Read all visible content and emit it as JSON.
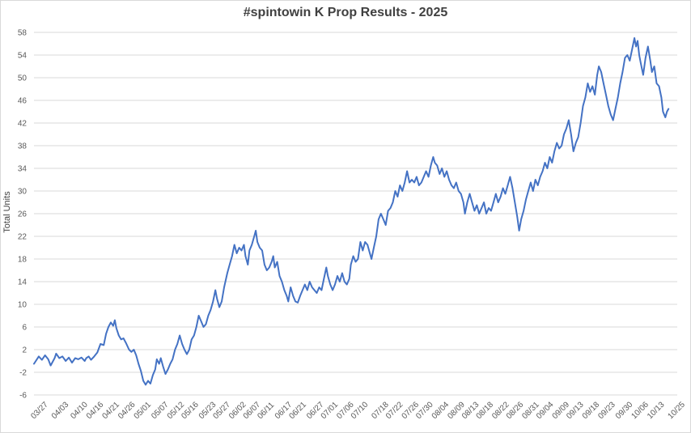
{
  "chart_data": {
    "type": "line",
    "title": "#spintowin K Prop Results - 2025",
    "xlabel": "",
    "ylabel": "Total Units",
    "ylim": [
      -6,
      58
    ],
    "yticks": [
      -6,
      -2,
      2,
      6,
      10,
      14,
      18,
      22,
      26,
      30,
      34,
      38,
      42,
      46,
      50,
      54,
      58
    ],
    "grid": true,
    "line_color": "#4472C4",
    "x_categories": [
      "03/27",
      "04/03",
      "04/10",
      "04/16",
      "04/21",
      "04/26",
      "05/01",
      "05/07",
      "05/12",
      "05/16",
      "05/23",
      "05/27",
      "06/02",
      "06/07",
      "06/11",
      "06/17",
      "06/21",
      "06/27",
      "07/01",
      "07/06",
      "07/10",
      "07/18",
      "07/22",
      "07/26",
      "07/30",
      "08/04",
      "08/09",
      "08/13",
      "08/18",
      "08/22",
      "08/26",
      "08/31",
      "09/04",
      "09/09",
      "09/13",
      "09/18",
      "09/23",
      "09/30",
      "10/06",
      "10/13",
      "10/25"
    ],
    "x_positions": [
      0,
      1.3,
      2.5,
      3.5,
      4.5,
      5.5,
      6.5,
      7.6,
      8.6,
      9.5,
      10.6,
      11.5,
      12.5,
      13.4,
      14.3,
      15.4,
      16.3,
      17.4,
      18.3,
      19.3,
      20.2,
      21.5,
      22.4,
      23.4,
      24.3,
      25.3,
      26.3,
      27.2,
      28.1,
      29.1,
      30.0,
      31.0,
      31.9,
      32.9,
      33.8,
      34.8,
      35.8,
      36.9,
      37.9,
      38.9,
      40.2
    ],
    "x_max": 40.6,
    "series": [
      {
        "values": [
          [
            0,
            -0.5
          ],
          [
            0.3,
            0.8
          ],
          [
            0.5,
            0.2
          ],
          [
            0.7,
            1.0
          ],
          [
            0.9,
            0.3
          ],
          [
            1.05,
            -0.8
          ],
          [
            1.3,
            0.5
          ],
          [
            1.4,
            1.3
          ],
          [
            1.6,
            0.5
          ],
          [
            1.8,
            0.8
          ],
          [
            2.0,
            0.0
          ],
          [
            2.2,
            0.6
          ],
          [
            2.4,
            -0.3
          ],
          [
            2.6,
            0.5
          ],
          [
            2.8,
            0.3
          ],
          [
            3.0,
            0.6
          ],
          [
            3.2,
            0.0
          ],
          [
            3.3,
            0.5
          ],
          [
            3.45,
            0.8
          ],
          [
            3.6,
            0.2
          ],
          [
            3.8,
            0.8
          ],
          [
            4.0,
            1.5
          ],
          [
            4.2,
            3.0
          ],
          [
            4.4,
            2.8
          ],
          [
            4.55,
            4.8
          ],
          [
            4.7,
            6.0
          ],
          [
            4.85,
            6.8
          ],
          [
            5.0,
            6.2
          ],
          [
            5.1,
            7.2
          ],
          [
            5.2,
            5.8
          ],
          [
            5.35,
            4.5
          ],
          [
            5.5,
            3.8
          ],
          [
            5.65,
            4.0
          ],
          [
            5.8,
            3.2
          ],
          [
            6.0,
            2.0
          ],
          [
            6.15,
            1.6
          ],
          [
            6.3,
            2.0
          ],
          [
            6.45,
            1.0
          ],
          [
            6.6,
            -0.5
          ],
          [
            6.75,
            -1.8
          ],
          [
            6.9,
            -3.5
          ],
          [
            7.05,
            -4.2
          ],
          [
            7.2,
            -3.5
          ],
          [
            7.35,
            -4.0
          ],
          [
            7.5,
            -2.5
          ],
          [
            7.65,
            -1.5
          ],
          [
            7.75,
            0.3
          ],
          [
            7.9,
            -0.5
          ],
          [
            8.0,
            0.5
          ],
          [
            8.15,
            -1.0
          ],
          [
            8.3,
            -2.3
          ],
          [
            8.45,
            -1.5
          ],
          [
            8.6,
            -0.5
          ],
          [
            8.75,
            0.3
          ],
          [
            8.9,
            2.0
          ],
          [
            9.05,
            3.0
          ],
          [
            9.2,
            4.5
          ],
          [
            9.35,
            3.0
          ],
          [
            9.5,
            2.0
          ],
          [
            9.65,
            1.2
          ],
          [
            9.8,
            2.0
          ],
          [
            9.95,
            3.8
          ],
          [
            10.1,
            4.5
          ],
          [
            10.25,
            6.0
          ],
          [
            10.4,
            8.0
          ],
          [
            10.55,
            7.0
          ],
          [
            10.7,
            6.0
          ],
          [
            10.85,
            6.5
          ],
          [
            11.0,
            8.0
          ],
          [
            11.15,
            9.0
          ],
          [
            11.3,
            10.5
          ],
          [
            11.45,
            12.5
          ],
          [
            11.55,
            11.0
          ],
          [
            11.7,
            9.5
          ],
          [
            11.85,
            10.5
          ],
          [
            12.0,
            13.0
          ],
          [
            12.2,
            15.5
          ],
          [
            12.35,
            17.0
          ],
          [
            12.5,
            18.5
          ],
          [
            12.65,
            20.5
          ],
          [
            12.8,
            19.0
          ],
          [
            12.95,
            20.0
          ],
          [
            13.1,
            19.5
          ],
          [
            13.25,
            20.5
          ],
          [
            13.35,
            18.5
          ],
          [
            13.5,
            17.0
          ],
          [
            13.6,
            19.5
          ],
          [
            13.75,
            20.5
          ],
          [
            13.9,
            22.0
          ],
          [
            14.0,
            23.0
          ],
          [
            14.1,
            21.0
          ],
          [
            14.25,
            20.0
          ],
          [
            14.4,
            19.5
          ],
          [
            14.55,
            17.0
          ],
          [
            14.7,
            16.0
          ],
          [
            14.85,
            16.5
          ],
          [
            15.0,
            17.5
          ],
          [
            15.1,
            18.5
          ],
          [
            15.2,
            16.5
          ],
          [
            15.35,
            17.5
          ],
          [
            15.5,
            15.0
          ],
          [
            15.65,
            14.0
          ],
          [
            15.8,
            12.5
          ],
          [
            15.95,
            11.5
          ],
          [
            16.05,
            10.5
          ],
          [
            16.2,
            13.0
          ],
          [
            16.35,
            11.5
          ],
          [
            16.5,
            10.5
          ],
          [
            16.65,
            10.3
          ],
          [
            16.8,
            11.5
          ],
          [
            16.95,
            12.5
          ],
          [
            17.1,
            13.5
          ],
          [
            17.25,
            12.5
          ],
          [
            17.4,
            14.0
          ],
          [
            17.55,
            13.0
          ],
          [
            17.7,
            12.5
          ],
          [
            17.85,
            12.0
          ],
          [
            18.0,
            13.0
          ],
          [
            18.15,
            12.5
          ],
          [
            18.3,
            14.5
          ],
          [
            18.45,
            16.5
          ],
          [
            18.55,
            15.0
          ],
          [
            18.7,
            13.5
          ],
          [
            18.85,
            12.5
          ],
          [
            19.0,
            13.5
          ],
          [
            19.15,
            15.0
          ],
          [
            19.3,
            14.0
          ],
          [
            19.45,
            15.5
          ],
          [
            19.6,
            14.0
          ],
          [
            19.75,
            13.5
          ],
          [
            19.9,
            14.5
          ],
          [
            20.0,
            17.0
          ],
          [
            20.15,
            18.5
          ],
          [
            20.3,
            17.5
          ],
          [
            20.45,
            18.0
          ],
          [
            20.6,
            21.0
          ],
          [
            20.75,
            19.5
          ],
          [
            20.9,
            21.0
          ],
          [
            21.05,
            20.5
          ],
          [
            21.2,
            19.0
          ],
          [
            21.3,
            18.0
          ],
          [
            21.45,
            20.0
          ],
          [
            21.6,
            22.0
          ],
          [
            21.75,
            25.0
          ],
          [
            21.9,
            26.0
          ],
          [
            22.05,
            25.0
          ],
          [
            22.2,
            24.0
          ],
          [
            22.35,
            26.5
          ],
          [
            22.5,
            27.0
          ],
          [
            22.65,
            28.0
          ],
          [
            22.8,
            30.0
          ],
          [
            22.95,
            29.0
          ],
          [
            23.1,
            31.0
          ],
          [
            23.25,
            30.0
          ],
          [
            23.4,
            31.5
          ],
          [
            23.55,
            33.5
          ],
          [
            23.7,
            31.5
          ],
          [
            23.85,
            32.0
          ],
          [
            24.0,
            31.5
          ],
          [
            24.15,
            32.5
          ],
          [
            24.3,
            31.0
          ],
          [
            24.45,
            31.5
          ],
          [
            24.6,
            32.5
          ],
          [
            24.75,
            33.5
          ],
          [
            24.9,
            32.5
          ],
          [
            25.05,
            34.5
          ],
          [
            25.2,
            36.0
          ],
          [
            25.3,
            35.0
          ],
          [
            25.45,
            34.5
          ],
          [
            25.6,
            33.0
          ],
          [
            25.75,
            34.0
          ],
          [
            25.9,
            32.5
          ],
          [
            26.05,
            33.5
          ],
          [
            26.2,
            32.0
          ],
          [
            26.35,
            31.0
          ],
          [
            26.5,
            30.5
          ],
          [
            26.65,
            31.5
          ],
          [
            26.8,
            30.0
          ],
          [
            26.95,
            29.5
          ],
          [
            27.1,
            28.0
          ],
          [
            27.2,
            26.0
          ],
          [
            27.35,
            28.0
          ],
          [
            27.5,
            29.5
          ],
          [
            27.65,
            28.0
          ],
          [
            27.8,
            26.5
          ],
          [
            27.95,
            27.5
          ],
          [
            28.1,
            26.0
          ],
          [
            28.25,
            27.0
          ],
          [
            28.4,
            28.0
          ],
          [
            28.55,
            26.0
          ],
          [
            28.7,
            27.0
          ],
          [
            28.85,
            26.5
          ],
          [
            29.0,
            28.0
          ],
          [
            29.15,
            29.5
          ],
          [
            29.3,
            28.0
          ],
          [
            29.45,
            29.0
          ],
          [
            29.6,
            30.5
          ],
          [
            29.75,
            29.5
          ],
          [
            29.9,
            31.0
          ],
          [
            30.05,
            32.5
          ],
          [
            30.2,
            30.5
          ],
          [
            30.35,
            28.0
          ],
          [
            30.5,
            25.5
          ],
          [
            30.62,
            23.0
          ],
          [
            30.75,
            25.0
          ],
          [
            30.9,
            26.5
          ],
          [
            31.05,
            28.5
          ],
          [
            31.2,
            30.0
          ],
          [
            31.35,
            31.5
          ],
          [
            31.5,
            30.0
          ],
          [
            31.65,
            32.0
          ],
          [
            31.8,
            31.0
          ],
          [
            31.95,
            32.5
          ],
          [
            32.1,
            33.5
          ],
          [
            32.25,
            35.0
          ],
          [
            32.4,
            34.0
          ],
          [
            32.55,
            36.0
          ],
          [
            32.7,
            35.0
          ],
          [
            32.85,
            37.0
          ],
          [
            33.0,
            38.5
          ],
          [
            33.15,
            37.5
          ],
          [
            33.3,
            38.0
          ],
          [
            33.45,
            40.0
          ],
          [
            33.6,
            41.0
          ],
          [
            33.75,
            42.5
          ],
          [
            33.9,
            40.0
          ],
          [
            34.05,
            37.0
          ],
          [
            34.2,
            38.5
          ],
          [
            34.35,
            39.5
          ],
          [
            34.5,
            42.0
          ],
          [
            34.65,
            45.0
          ],
          [
            34.8,
            46.5
          ],
          [
            34.95,
            49.0
          ],
          [
            35.1,
            47.5
          ],
          [
            35.25,
            48.5
          ],
          [
            35.4,
            47.0
          ],
          [
            35.55,
            50.5
          ],
          [
            35.65,
            52.0
          ],
          [
            35.8,
            51.0
          ],
          [
            35.95,
            49.0
          ],
          [
            36.1,
            47.0
          ],
          [
            36.25,
            45.0
          ],
          [
            36.4,
            43.5
          ],
          [
            36.55,
            42.5
          ],
          [
            36.7,
            44.5
          ],
          [
            36.85,
            46.5
          ],
          [
            37.0,
            49.0
          ],
          [
            37.15,
            51.0
          ],
          [
            37.3,
            53.5
          ],
          [
            37.45,
            54.0
          ],
          [
            37.6,
            53.0
          ],
          [
            37.75,
            55.0
          ],
          [
            37.9,
            57.0
          ],
          [
            38.0,
            55.5
          ],
          [
            38.1,
            56.5
          ],
          [
            38.2,
            54.0
          ],
          [
            38.3,
            52.5
          ],
          [
            38.45,
            50.5
          ],
          [
            38.6,
            53.5
          ],
          [
            38.75,
            55.5
          ],
          [
            38.9,
            53.0
          ],
          [
            39.0,
            51.0
          ],
          [
            39.15,
            52.0
          ],
          [
            39.3,
            49.0
          ],
          [
            39.45,
            48.5
          ],
          [
            39.6,
            46.5
          ],
          [
            39.7,
            44.0
          ],
          [
            39.85,
            43.0
          ],
          [
            39.95,
            44.0
          ],
          [
            40.05,
            44.5
          ]
        ]
      }
    ]
  }
}
